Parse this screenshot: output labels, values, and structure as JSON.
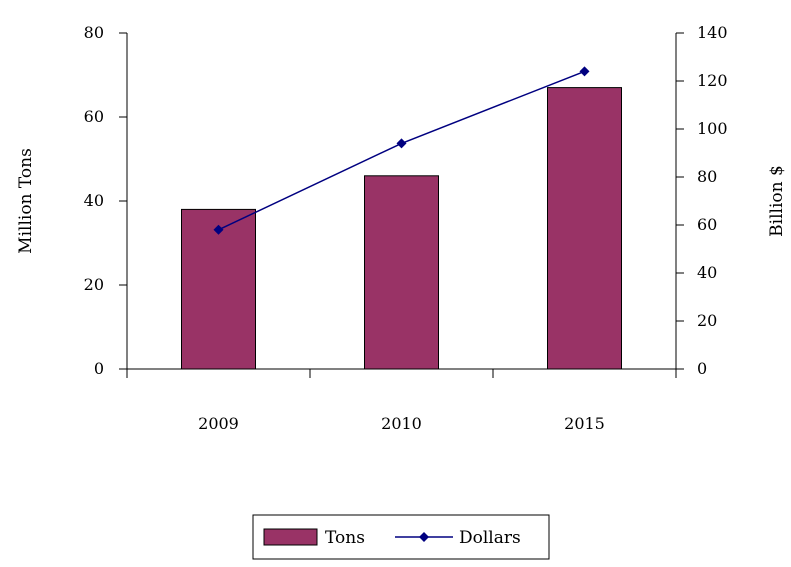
{
  "chart_data": {
    "type": "bar",
    "categories": [
      "2009",
      "2010",
      "2015"
    ],
    "series": [
      {
        "name": "Tons",
        "type": "bar",
        "axis": "left",
        "values": [
          38,
          46,
          67
        ],
        "color": "#993366"
      },
      {
        "name": "Dollars",
        "type": "line",
        "axis": "right",
        "values": [
          58,
          94,
          124
        ],
        "color": "#000080"
      }
    ],
    "ylabel": "Million Tons",
    "y2label": "Billion $",
    "ylim": [
      0,
      80
    ],
    "y2lim": [
      0,
      140
    ],
    "yticks": [
      "0",
      "20",
      "40",
      "60",
      "80"
    ],
    "y2ticks": [
      "0",
      "20",
      "40",
      "60",
      "80",
      "100",
      "120",
      "140"
    ],
    "legend": {
      "position": "bottom",
      "entries": [
        "Tons",
        "Dollars"
      ]
    },
    "grid": false
  }
}
